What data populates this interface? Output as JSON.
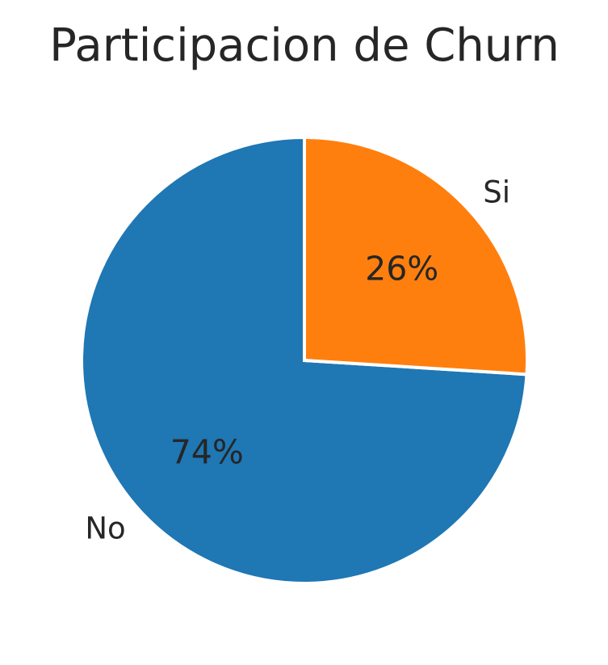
{
  "chart_data": {
    "type": "pie",
    "title": "Participacion de Churn",
    "slices": [
      {
        "label": "No",
        "value": 74,
        "pct_label": "74%",
        "color": "#1f77b4"
      },
      {
        "label": "Si",
        "value": 26,
        "pct_label": "26%",
        "color": "#ff7f0e"
      }
    ],
    "edge_color": "#ffffff"
  }
}
